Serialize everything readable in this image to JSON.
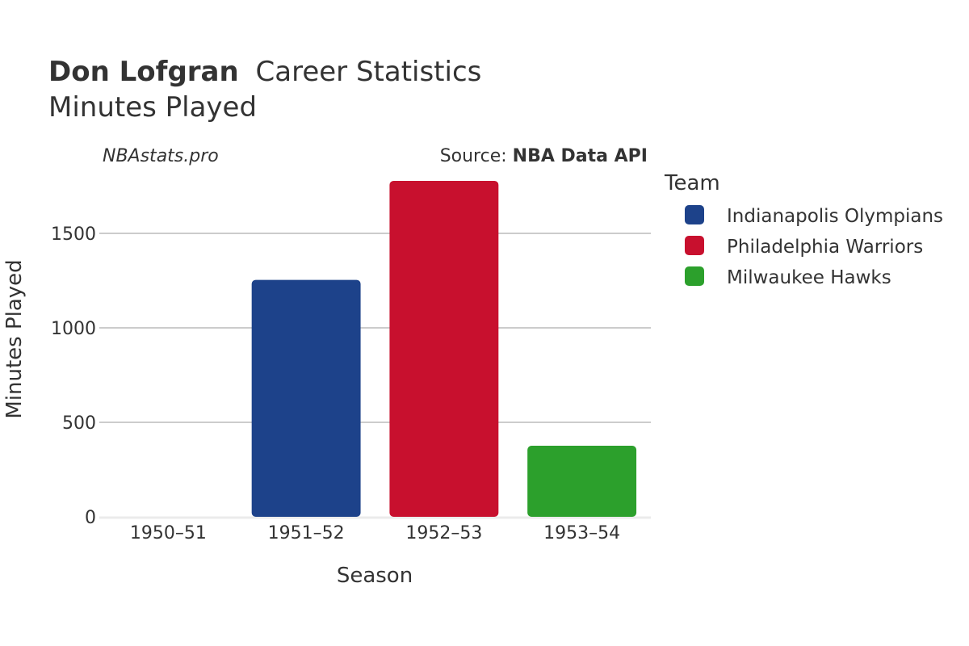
{
  "header": {
    "player_name": "Don Lofgran",
    "title_suffix": "Career Statistics",
    "subtitle": "Minutes Played"
  },
  "watermark": {
    "site": "NBAstats.pro",
    "source_prefix": "Source: ",
    "source_name": "NBA Data API"
  },
  "legend": {
    "title": "Team",
    "position": "right",
    "items": [
      {
        "label": "Indianapolis Olympians",
        "color": "#1d428a"
      },
      {
        "label": "Philadelphia Warriors",
        "color": "#c8102e"
      },
      {
        "label": "Milwaukee Hawks",
        "color": "#2ca02c"
      }
    ]
  },
  "chart_data": {
    "type": "bar",
    "title": "Don Lofgran Career Statistics",
    "subtitle": "Minutes Played",
    "xlabel": "Season",
    "ylabel": "Minutes Played",
    "categories": [
      "1950–51",
      "1951–52",
      "1952–53",
      "1953–54"
    ],
    "series": [
      {
        "name": "Indianapolis Olympians",
        "color": "#1d428a",
        "values": [
          null,
          1254,
          null,
          null
        ]
      },
      {
        "name": "Philadelphia Warriors",
        "color": "#c8102e",
        "values": [
          null,
          null,
          1778,
          null
        ]
      },
      {
        "name": "Milwaukee Hawks",
        "color": "#2ca02c",
        "values": [
          null,
          null,
          null,
          376
        ]
      }
    ],
    "ylim": [
      0,
      1860
    ],
    "yticks": [
      0,
      500,
      1000,
      1500
    ],
    "ytick_labels": [
      "0",
      "500",
      "1000",
      "1500"
    ],
    "grid": true,
    "legend_position": "right"
  }
}
